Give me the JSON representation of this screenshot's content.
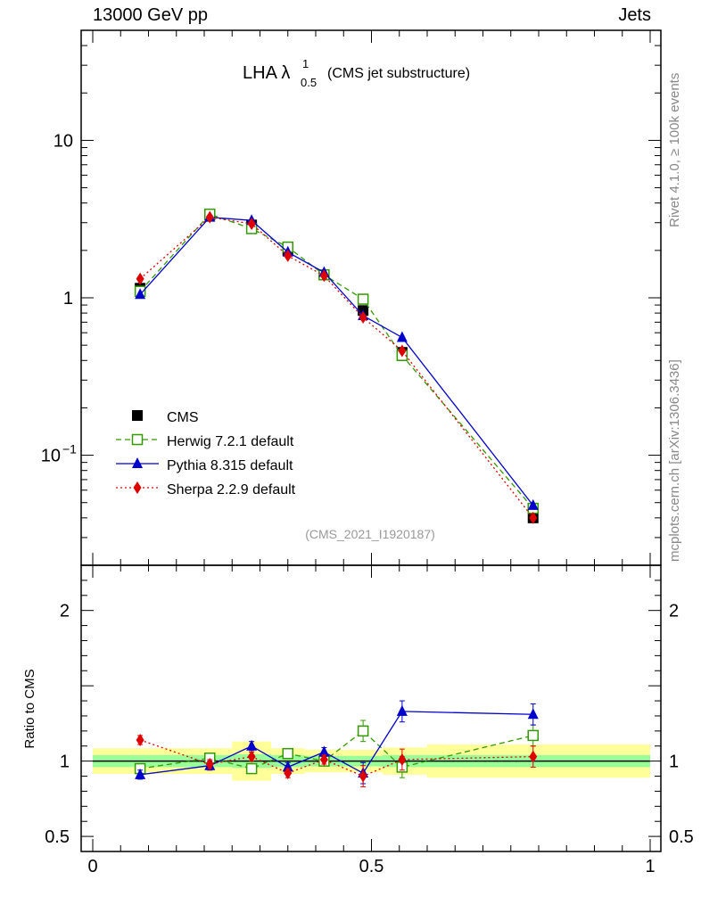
{
  "header": {
    "left": "13000 GeV pp",
    "right": "Jets"
  },
  "side_labels": {
    "top": "Rivet 4.1.0, ≥ 100k events",
    "bottom": "mcplots.cern.ch [arXiv:1306.3436]"
  },
  "chart_data": {
    "type": "line",
    "title_main": "LHA λ",
    "title_sup": "1",
    "title_sub": "0.5",
    "subtitle": "(CMS jet substructure)",
    "watermark": "(CMS_2021_I1920187)",
    "x": [
      0.085,
      0.21,
      0.285,
      0.35,
      0.415,
      0.485,
      0.555,
      0.79
    ],
    "xlim": [
      0,
      1
    ],
    "ylim_log": [
      0.02,
      50
    ],
    "main_yticks": [
      {
        "value": 10,
        "label": "10"
      },
      {
        "value": 1,
        "label": "1"
      },
      {
        "value": 0.1,
        "label": "10",
        "exp": "−1"
      }
    ],
    "ratio_ylabel": "Ratio to CMS",
    "ratio_ylim": [
      0.4,
      2.3
    ],
    "ratio_yticks": [
      {
        "value": 2,
        "label": "2"
      },
      {
        "value": 1,
        "label": "1"
      },
      {
        "value": 0.5,
        "label": "0.5"
      }
    ],
    "xticks": [
      {
        "value": 0,
        "label": "0"
      },
      {
        "value": 0.5,
        "label": "0.5"
      },
      {
        "value": 1,
        "label": "1"
      }
    ],
    "data": {
      "name": "CMS",
      "values": [
        1.15,
        3.35,
        2.9,
        2.0,
        1.4,
        0.83,
        0.45,
        0.04
      ],
      "band_edges": [
        0,
        0.17,
        0.25,
        0.32,
        0.38,
        0.45,
        0.52,
        0.6,
        1.0
      ],
      "band_err_inner": [
        0.04,
        0.04,
        0.045,
        0.04,
        0.035,
        0.035,
        0.04,
        0.04
      ],
      "band_err_outer": [
        0.085,
        0.085,
        0.13,
        0.085,
        0.075,
        0.075,
        0.09,
        0.11
      ]
    },
    "series": [
      {
        "name": "Herwig 7.2.1 default",
        "color": "#339900",
        "marker": "open-square",
        "dash": "6,4",
        "values": [
          1.1,
          3.4,
          2.75,
          2.1,
          1.4,
          0.98,
          0.43,
          0.046
        ],
        "ratio": [
          0.95,
          1.02,
          0.95,
          1.05,
          1.0,
          1.2,
          0.96,
          1.17
        ]
      },
      {
        "name": "Pythia 8.315 default",
        "color": "#0000cc",
        "marker": "filled-triangle",
        "dash": "",
        "values": [
          1.05,
          3.25,
          3.1,
          1.95,
          1.45,
          0.77,
          0.56,
          0.048
        ],
        "ratio": [
          0.91,
          0.97,
          1.1,
          0.96,
          1.06,
          0.92,
          1.33,
          1.31
        ]
      },
      {
        "name": "Sherpa 2.2.9 default",
        "color": "#dd0000",
        "marker": "filled-diamond",
        "dash": "2,3",
        "values": [
          1.32,
          3.25,
          2.95,
          1.85,
          1.38,
          0.75,
          0.46,
          0.04
        ],
        "ratio": [
          1.14,
          0.98,
          1.03,
          0.92,
          1.01,
          0.9,
          1.01,
          1.03
        ]
      }
    ]
  }
}
